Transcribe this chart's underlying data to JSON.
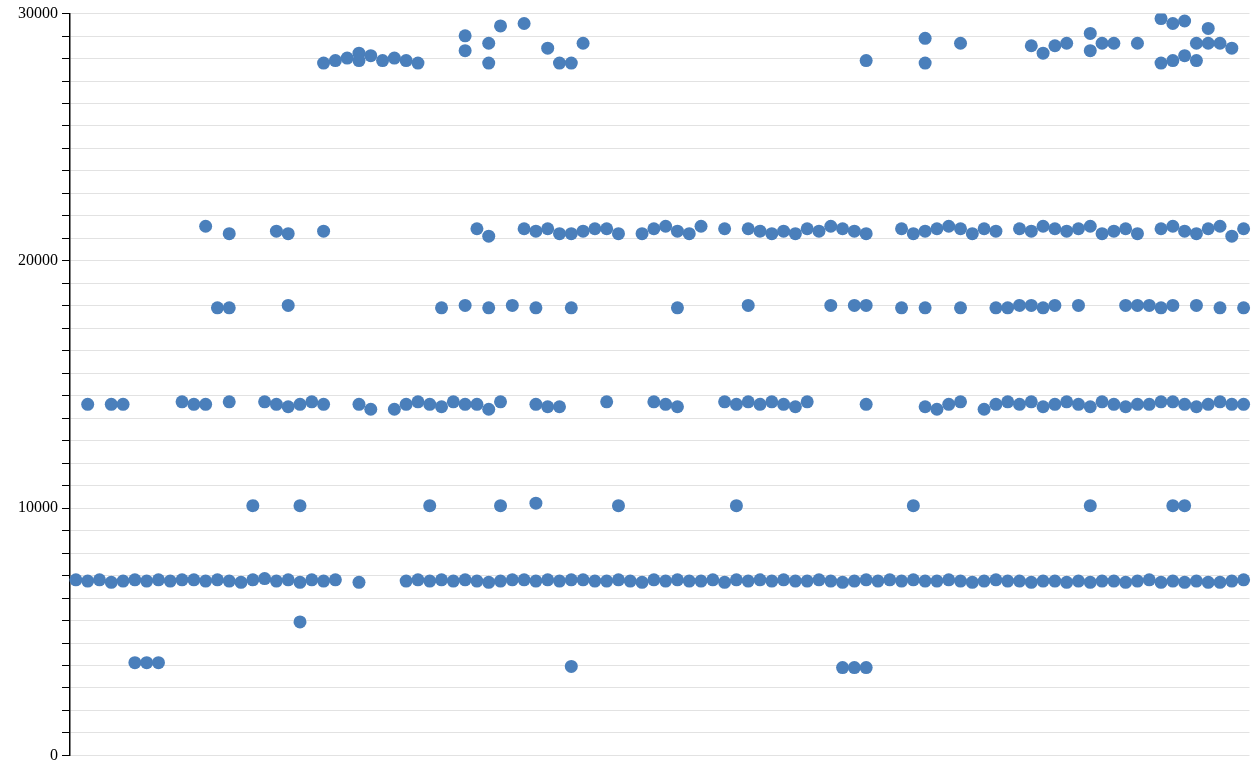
{
  "chart_data": {
    "type": "scatter",
    "categories": [
      null,
      null,
      null,
      null,
      null,
      null,
      null,
      null,
      null,
      null,
      null,
      null,
      null,
      null,
      null,
      null,
      null,
      null,
      null,
      null,
      null,
      null,
      null,
      null,
      null,
      null,
      null,
      null,
      null,
      null,
      null,
      null,
      null,
      null,
      null,
      null,
      null,
      null,
      null,
      null,
      null,
      null,
      null,
      null,
      null,
      null,
      null,
      null,
      null,
      null,
      null,
      null,
      null,
      null,
      null,
      null,
      null,
      null,
      null,
      null,
      null,
      null,
      null,
      null,
      null,
      null,
      null,
      null,
      null,
      null,
      null,
      null,
      null,
      null,
      null,
      null,
      null,
      null,
      null,
      null,
      null,
      null,
      null,
      null,
      null,
      null,
      null,
      null,
      null,
      null,
      null,
      null,
      null,
      null,
      null,
      null,
      null,
      null,
      null,
      null
    ],
    "ylim": [
      0,
      30000
    ],
    "yticks": [
      0,
      {
        "value": 909,
        "label": null
      },
      {
        "value": 1818,
        "label": null
      },
      {
        "value": 2727,
        "label": null
      },
      {
        "value": 3636,
        "label": null
      },
      {
        "value": 4545,
        "label": null
      },
      {
        "value": 5455,
        "label": null
      },
      {
        "value": 6364,
        "label": null
      },
      {
        "value": 7273,
        "label": null
      },
      {
        "value": 8182,
        "label": null
      },
      {
        "value": 9091,
        "label": null
      },
      10000,
      {
        "value": 10909,
        "label": null
      },
      {
        "value": 11818,
        "label": null
      },
      {
        "value": 12727,
        "label": null
      },
      {
        "value": 13636,
        "label": null
      },
      {
        "value": 14545,
        "label": null
      },
      {
        "value": 15455,
        "label": null
      },
      {
        "value": 16364,
        "label": null
      },
      {
        "value": 17273,
        "label": null
      },
      {
        "value": 18182,
        "label": null
      },
      {
        "value": 19091,
        "label": null
      },
      20000,
      {
        "value": 20909,
        "label": null
      },
      {
        "value": 21818,
        "label": null
      },
      {
        "value": 22727,
        "label": null
      },
      {
        "value": 23636,
        "label": null
      },
      {
        "value": 24545,
        "label": null
      },
      {
        "value": 25455,
        "label": null
      },
      {
        "value": 26364,
        "label": null
      },
      {
        "value": 27273,
        "label": null
      },
      {
        "value": 28182,
        "label": null
      },
      {
        "value": 29091,
        "label": null
      },
      30000
    ],
    "grid": "y",
    "marker": "circle",
    "tick_labels": "y",
    "series": [
      {
        "color": "#4a7fbb",
        "values": [
          7100,
          7050,
          7100,
          7000,
          7050,
          7100,
          7050,
          7100,
          7050,
          7100,
          7100,
          7050,
          7100,
          7050,
          7000,
          7100,
          7150,
          7050,
          7100,
          7000,
          7100,
          7050,
          7100,
          null,
          7000,
          null,
          null,
          null,
          7050,
          7100,
          7050,
          7100,
          7050,
          7100,
          7050,
          7000,
          7050,
          7100,
          7100,
          7050,
          7100,
          7050,
          7100,
          7100,
          7050,
          7050,
          7100,
          7050,
          7000,
          7100,
          7050,
          7100,
          7050,
          7050,
          7100,
          7000,
          7100,
          7050,
          7100,
          7050,
          7100,
          7050,
          7050,
          7100,
          7050,
          7000,
          7050,
          7100,
          7050,
          7100,
          7050,
          7100,
          7050,
          7050,
          7100,
          7050,
          7000,
          7050,
          7100,
          7050,
          7050,
          7000,
          7050,
          7050,
          7000,
          7050,
          7000,
          7050,
          7050,
          7000,
          7050,
          7100,
          7000,
          7050,
          7000,
          7050,
          7000,
          7000,
          7050,
          7100
        ]
      },
      {
        "color": "#4a7fbb",
        "values": [
          null,
          14200,
          null,
          14200,
          14200,
          null,
          null,
          null,
          null,
          14300,
          14200,
          14200,
          null,
          14300,
          null,
          null,
          14300,
          14200,
          14100,
          14200,
          14300,
          14200,
          null,
          null,
          14200,
          14000,
          null,
          14000,
          14200,
          14300,
          14200,
          14100,
          14300,
          14200,
          14200,
          14000,
          14300,
          null,
          null,
          14200,
          14100,
          14100,
          null,
          null,
          null,
          14300,
          null,
          null,
          null,
          14300,
          14200,
          14100,
          null,
          null,
          null,
          14300,
          14200,
          14300,
          14200,
          14300,
          14200,
          14100,
          14300,
          null,
          null,
          null,
          null,
          14200,
          null,
          null,
          null,
          null,
          14100,
          14000,
          14200,
          14300,
          null,
          14000,
          14200,
          14300,
          14200,
          14300,
          14100,
          14200,
          14300,
          14200,
          14100,
          14300,
          14200,
          14100,
          14200,
          14200,
          14300,
          14300,
          14200,
          14100,
          14200,
          14300,
          14200,
          14200
        ]
      },
      {
        "color": "#4a7fbb",
        "values": [
          null,
          null,
          null,
          null,
          null,
          null,
          null,
          null,
          null,
          null,
          null,
          21400,
          null,
          21100,
          null,
          null,
          null,
          21200,
          21100,
          null,
          null,
          21200,
          null,
          null,
          null,
          null,
          null,
          null,
          null,
          null,
          null,
          null,
          null,
          null,
          21300,
          21000,
          null,
          null,
          21300,
          21200,
          21300,
          21100,
          21100,
          21200,
          21300,
          21300,
          21100,
          null,
          21100,
          21300,
          21400,
          21200,
          21100,
          21400,
          null,
          21300,
          null,
          21300,
          21200,
          21100,
          21200,
          21100,
          21300,
          21200,
          21400,
          21300,
          21200,
          21100,
          null,
          null,
          21300,
          21100,
          21200,
          21300,
          21400,
          21300,
          21100,
          21300,
          21200,
          null,
          21300,
          21200,
          21400,
          21300,
          21200,
          21300,
          21400,
          21100,
          21200,
          21300,
          21100,
          null,
          21300,
          21400,
          21200,
          21100,
          21300,
          21400,
          21000,
          21300
        ]
      },
      {
        "color": "#4a7fbb",
        "values": [
          null,
          null,
          null,
          null,
          null,
          null,
          null,
          null,
          null,
          null,
          null,
          null,
          18100,
          18100,
          null,
          null,
          null,
          null,
          18200,
          null,
          null,
          null,
          null,
          null,
          null,
          null,
          null,
          null,
          null,
          null,
          null,
          18100,
          null,
          18200,
          null,
          18100,
          null,
          18200,
          null,
          18100,
          null,
          null,
          18100,
          null,
          null,
          null,
          null,
          null,
          null,
          null,
          null,
          18100,
          null,
          null,
          null,
          null,
          null,
          18200,
          null,
          null,
          null,
          null,
          null,
          null,
          18200,
          null,
          18200,
          18200,
          null,
          null,
          18100,
          null,
          18100,
          null,
          null,
          18100,
          null,
          null,
          18100,
          18100,
          18200,
          18200,
          18100,
          18200,
          null,
          18200,
          null,
          null,
          null,
          18200,
          18200,
          18200,
          18100,
          18200,
          null,
          18200,
          null,
          18100,
          null,
          18100
        ]
      },
      {
        "color": "#4a7fbb",
        "values": [
          null,
          null,
          null,
          null,
          null,
          null,
          null,
          null,
          null,
          null,
          null,
          null,
          null,
          null,
          null,
          10100,
          null,
          null,
          null,
          10100,
          null,
          null,
          null,
          null,
          null,
          null,
          null,
          null,
          null,
          null,
          10100,
          null,
          null,
          null,
          null,
          null,
          10100,
          null,
          null,
          10200,
          null,
          null,
          null,
          null,
          null,
          null,
          10100,
          null,
          null,
          null,
          null,
          null,
          null,
          null,
          null,
          null,
          10100,
          null,
          null,
          null,
          null,
          null,
          null,
          null,
          null,
          null,
          null,
          null,
          null,
          null,
          null,
          10100,
          null,
          null,
          null,
          null,
          null,
          null,
          null,
          null,
          null,
          null,
          null,
          null,
          null,
          null,
          10100,
          null,
          null,
          null,
          null,
          null,
          null,
          10100,
          10100,
          null,
          null,
          null,
          null,
          null
        ]
      },
      {
        "color": "#4a7fbb",
        "values": [
          null,
          null,
          null,
          null,
          null,
          3750,
          3750,
          3750,
          null,
          null,
          null,
          null,
          null,
          null,
          null,
          null,
          null,
          null,
          null,
          5400,
          null,
          null,
          null,
          null,
          null,
          null,
          null,
          null,
          null,
          null,
          null,
          null,
          null,
          null,
          null,
          null,
          null,
          null,
          null,
          null,
          null,
          null,
          3600,
          null,
          null,
          null,
          null,
          null,
          null,
          null,
          null,
          null,
          null,
          null,
          null,
          null,
          null,
          null,
          null,
          null,
          null,
          null,
          null,
          null,
          null,
          3550,
          3550,
          3550,
          null,
          null,
          null,
          null,
          null,
          null,
          null,
          null,
          null,
          null,
          null,
          null,
          null,
          null,
          null,
          null,
          null,
          null,
          null,
          null,
          null,
          null,
          null,
          null,
          null,
          null,
          null,
          null,
          null,
          null,
          null,
          null
        ]
      },
      {
        "color": "#4a7fbb",
        "values": [
          null,
          null,
          null,
          null,
          null,
          null,
          null,
          null,
          null,
          null,
          null,
          null,
          null,
          null,
          null,
          null,
          null,
          null,
          null,
          null,
          null,
          28000,
          28100,
          28200,
          28100,
          28300,
          28100,
          28200,
          28100,
          28000,
          null,
          null,
          null,
          28500,
          null,
          28000,
          29500,
          null,
          29600,
          null,
          28600,
          28000,
          28000,
          28800,
          null,
          null,
          null,
          null,
          null,
          null,
          null,
          null,
          null,
          null,
          null,
          null,
          null,
          null,
          null,
          null,
          null,
          null,
          null,
          null,
          null,
          null,
          null,
          28100,
          null,
          null,
          null,
          null,
          28000,
          null,
          null,
          28800,
          null,
          null,
          null,
          null,
          null,
          28700,
          28400,
          28700,
          28800,
          null,
          28500,
          28800,
          28800,
          null,
          28800,
          null,
          28000,
          28100,
          28300,
          28800,
          28800,
          28800,
          28600,
          null
        ]
      },
      {
        "color": "#4a7fbb",
        "values": [
          null,
          null,
          null,
          null,
          null,
          null,
          null,
          null,
          null,
          null,
          null,
          null,
          null,
          null,
          null,
          null,
          null,
          null,
          null,
          null,
          null,
          null,
          null,
          null,
          28400,
          null,
          null,
          null,
          null,
          null,
          null,
          null,
          null,
          29100,
          null,
          28800,
          null,
          null,
          null,
          null,
          null,
          null,
          null,
          null,
          null,
          null,
          null,
          null,
          null,
          null,
          null,
          null,
          null,
          null,
          null,
          null,
          null,
          null,
          null,
          null,
          null,
          null,
          null,
          null,
          null,
          null,
          null,
          null,
          null,
          null,
          null,
          null,
          29000,
          null,
          null,
          null,
          null,
          null,
          null,
          null,
          null,
          null,
          null,
          null,
          null,
          null,
          29200,
          null,
          null,
          null,
          null,
          null,
          29800,
          29600,
          29700,
          28100,
          29400,
          null,
          null,
          null
        ]
      }
    ]
  }
}
